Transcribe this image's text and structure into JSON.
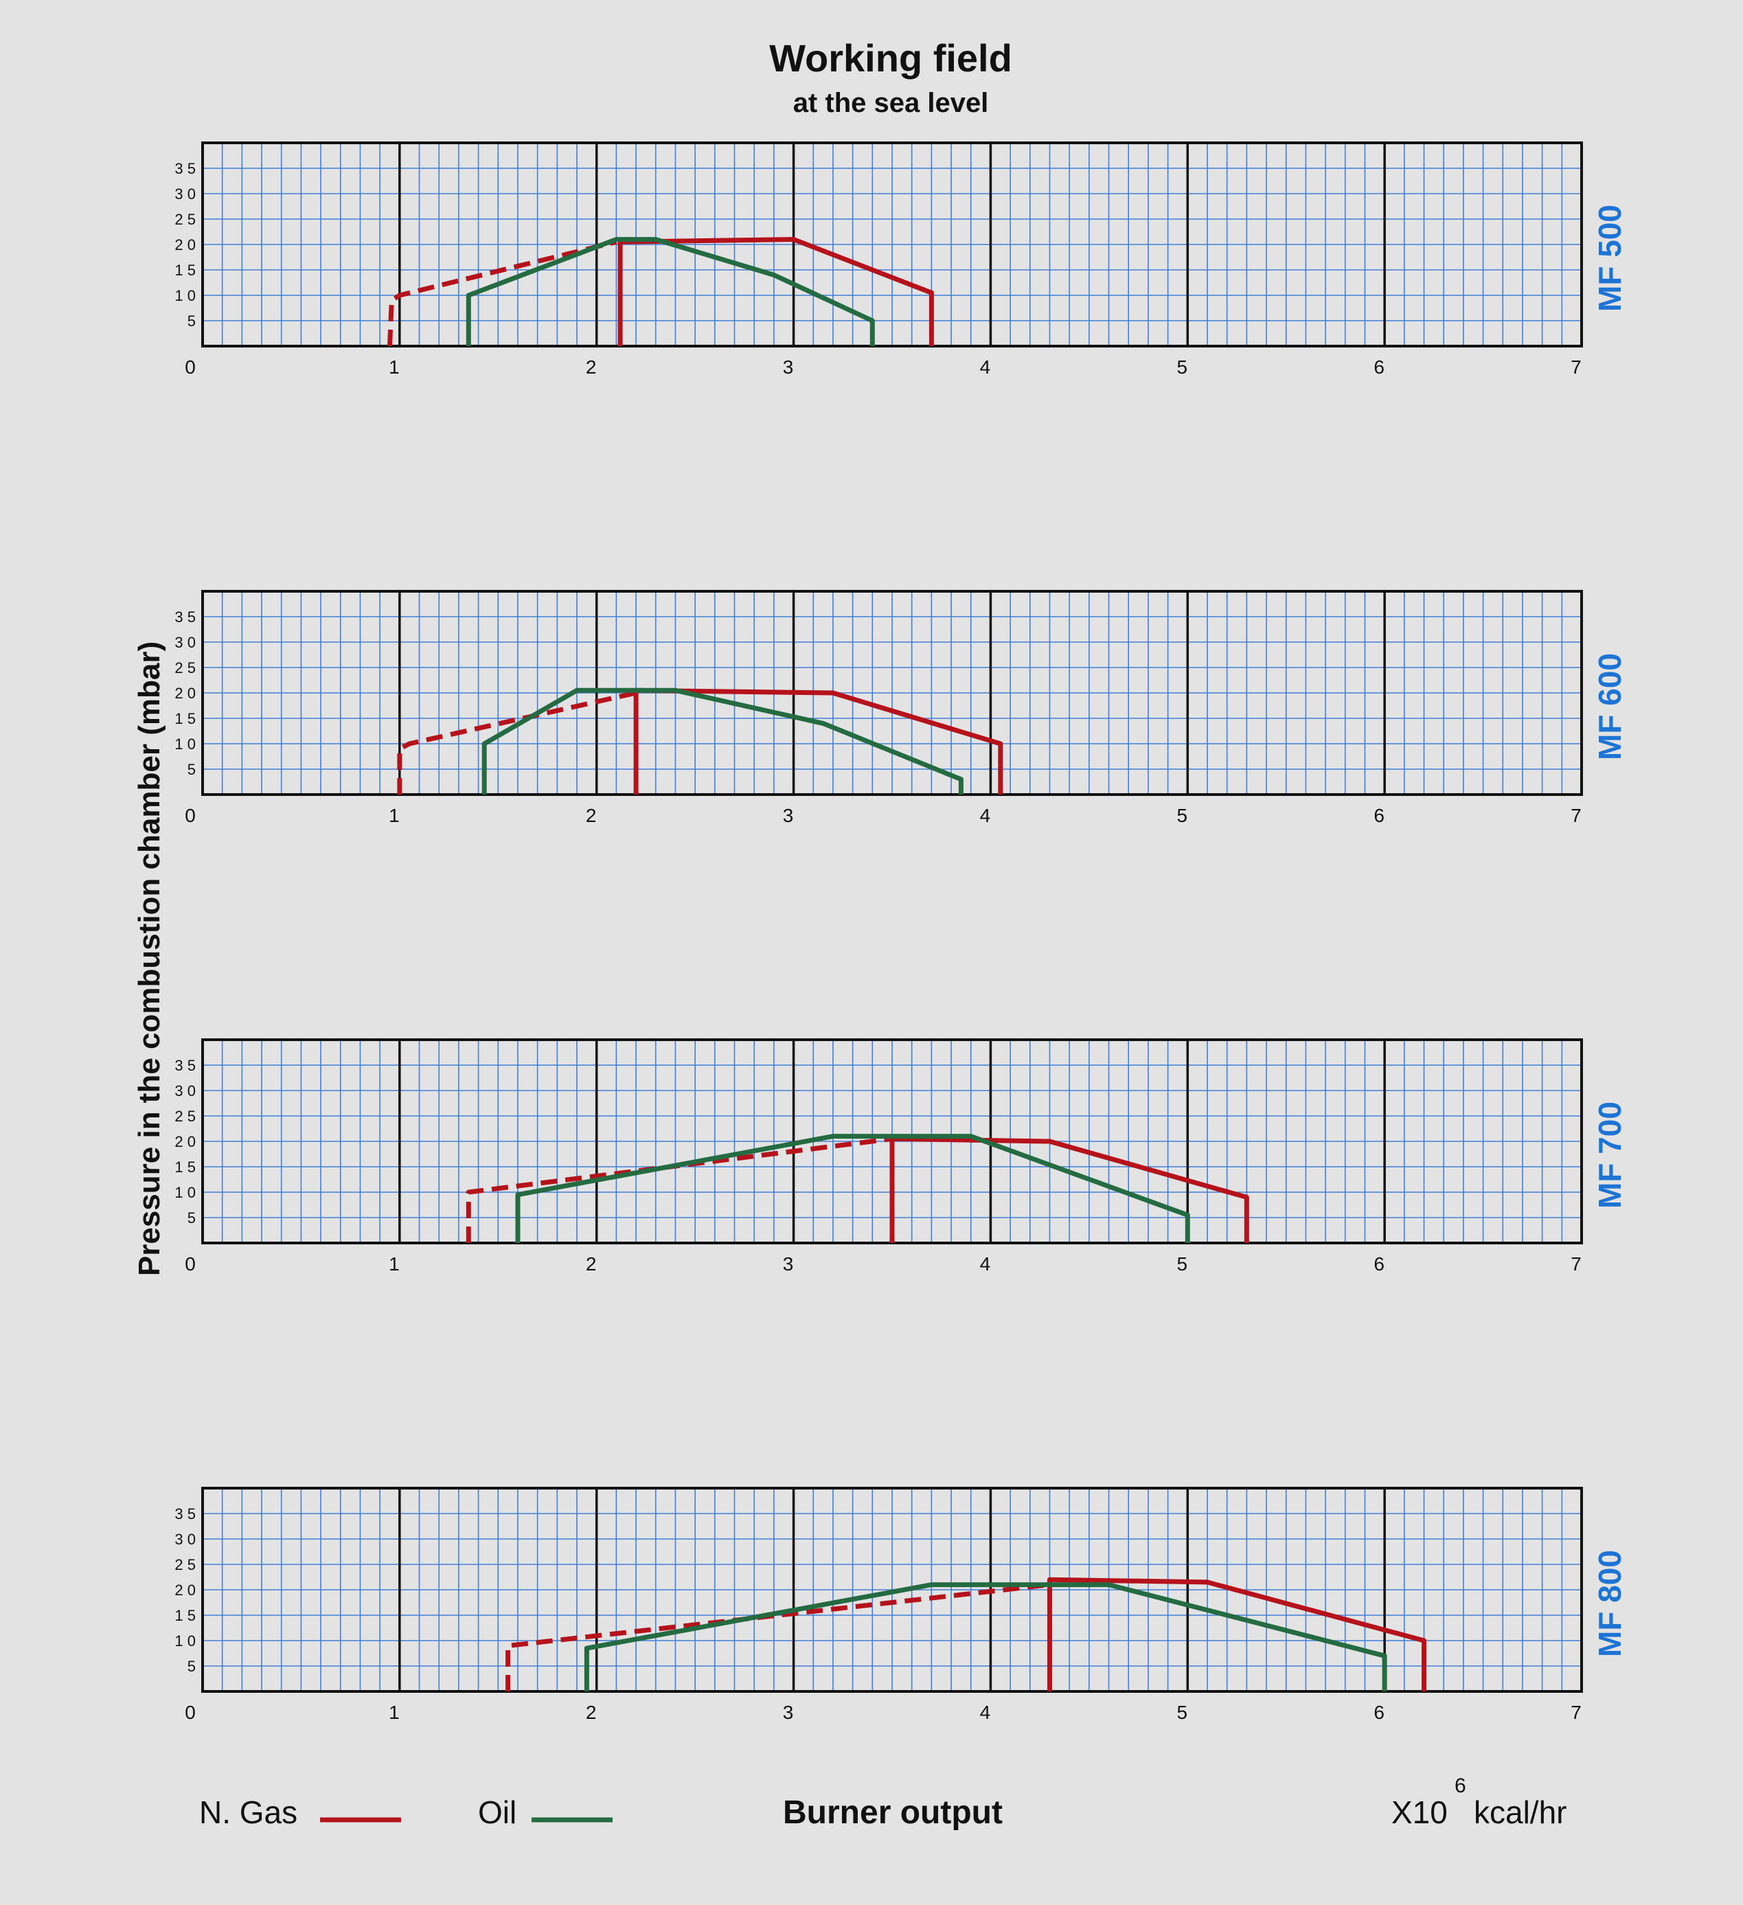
{
  "title": "Working field",
  "subtitle": "at the sea level",
  "ylabel": "Pressure in the combustion chamber (mbar)",
  "xlabel": "Burner output",
  "unit": {
    "prefix": "X10",
    "exponent": "6",
    "suffix": "kcal/hr"
  },
  "legend": [
    {
      "label": "N. Gas",
      "color": "#b5121b"
    },
    {
      "label": "Oil",
      "color": "#256b42"
    }
  ],
  "colors": {
    "grid_minor": "#3f7fd6",
    "grid_major": "#111111",
    "model_label": "#1e74d4",
    "background": "#e3e3e3"
  },
  "chart_data": [
    {
      "type": "line",
      "model": "MF 500",
      "xlim": [
        0,
        7
      ],
      "ylim": [
        0,
        40
      ],
      "x_ticks": [
        "0",
        "1",
        "2",
        "3",
        "4",
        "5",
        "6",
        "7"
      ],
      "y_ticks": [
        "5",
        "10",
        "15",
        "20",
        "25",
        "30",
        "35"
      ],
      "grid": true,
      "series": [
        {
          "name": "N. Gas",
          "style": "dashed",
          "points": [
            [
              0.95,
              0
            ],
            [
              0.96,
              9
            ],
            [
              1.0,
              10
            ],
            [
              2.1,
              20.5
            ]
          ]
        },
        {
          "name": "N. Gas",
          "style": "solid",
          "points": [
            [
              2.12,
              0
            ],
            [
              2.12,
              20.5
            ],
            [
              3.0,
              21
            ],
            [
              3.7,
              10.5
            ],
            [
              3.7,
              0
            ]
          ]
        },
        {
          "name": "Oil",
          "style": "solid",
          "points": [
            [
              1.35,
              0
            ],
            [
              1.35,
              10
            ],
            [
              2.1,
              21
            ],
            [
              2.3,
              21
            ],
            [
              2.9,
              14
            ],
            [
              3.4,
              5
            ],
            [
              3.4,
              0
            ]
          ]
        }
      ]
    },
    {
      "type": "line",
      "model": "MF 600",
      "xlim": [
        0,
        7
      ],
      "ylim": [
        0,
        40
      ],
      "x_ticks": [
        "0",
        "1",
        "2",
        "3",
        "4",
        "5",
        "6",
        "7"
      ],
      "y_ticks": [
        "5",
        "10",
        "15",
        "20",
        "25",
        "30",
        "35"
      ],
      "grid": true,
      "series": [
        {
          "name": "N. Gas",
          "style": "dashed",
          "points": [
            [
              1.0,
              0
            ],
            [
              1.0,
              9
            ],
            [
              1.05,
              10
            ],
            [
              2.2,
              20
            ]
          ]
        },
        {
          "name": "N. Gas",
          "style": "solid",
          "points": [
            [
              2.2,
              0
            ],
            [
              2.2,
              20.5
            ],
            [
              3.2,
              20
            ],
            [
              4.05,
              10
            ],
            [
              4.05,
              0
            ]
          ]
        },
        {
          "name": "Oil",
          "style": "solid",
          "points": [
            [
              1.43,
              0
            ],
            [
              1.43,
              10
            ],
            [
              1.9,
              20.5
            ],
            [
              2.4,
              20.5
            ],
            [
              3.15,
              14
            ],
            [
              3.85,
              3
            ],
            [
              3.85,
              0
            ]
          ]
        }
      ]
    },
    {
      "type": "line",
      "model": "MF 700",
      "xlim": [
        0,
        7
      ],
      "ylim": [
        0,
        40
      ],
      "x_ticks": [
        "0",
        "1",
        "2",
        "3",
        "4",
        "5",
        "6",
        "7"
      ],
      "y_ticks": [
        "5",
        "10",
        "15",
        "20",
        "25",
        "30",
        "35"
      ],
      "grid": true,
      "series": [
        {
          "name": "N. Gas",
          "style": "dashed",
          "points": [
            [
              1.35,
              0
            ],
            [
              1.35,
              10
            ],
            [
              3.5,
              20.5
            ]
          ]
        },
        {
          "name": "N. Gas",
          "style": "solid",
          "points": [
            [
              3.5,
              0
            ],
            [
              3.5,
              20.5
            ],
            [
              4.3,
              20
            ],
            [
              5.3,
              9
            ],
            [
              5.3,
              0
            ]
          ]
        },
        {
          "name": "Oil",
          "style": "solid",
          "points": [
            [
              1.6,
              0
            ],
            [
              1.6,
              9.5
            ],
            [
              3.2,
              21
            ],
            [
              3.9,
              21
            ],
            [
              5.0,
              5.5
            ],
            [
              5.0,
              0
            ]
          ]
        }
      ]
    },
    {
      "type": "line",
      "model": "MF 800",
      "xlim": [
        0,
        7
      ],
      "ylim": [
        0,
        40
      ],
      "x_ticks": [
        "0",
        "1",
        "2",
        "3",
        "4",
        "5",
        "6",
        "7"
      ],
      "y_ticks": [
        "5",
        "10",
        "15",
        "20",
        "25",
        "30",
        "35"
      ],
      "grid": true,
      "series": [
        {
          "name": "N. Gas",
          "style": "dashed",
          "points": [
            [
              1.55,
              0
            ],
            [
              1.55,
              9
            ],
            [
              1.6,
              9.2
            ],
            [
              4.3,
              21
            ]
          ]
        },
        {
          "name": "N. Gas",
          "style": "solid",
          "points": [
            [
              4.3,
              0
            ],
            [
              4.3,
              22
            ],
            [
              5.1,
              21.5
            ],
            [
              6.2,
              10
            ],
            [
              6.2,
              0
            ]
          ]
        },
        {
          "name": "Oil",
          "style": "solid",
          "points": [
            [
              1.95,
              0
            ],
            [
              1.95,
              8.5
            ],
            [
              3.7,
              21
            ],
            [
              4.6,
              21
            ],
            [
              6.0,
              7
            ],
            [
              6.0,
              0
            ]
          ]
        }
      ]
    }
  ]
}
